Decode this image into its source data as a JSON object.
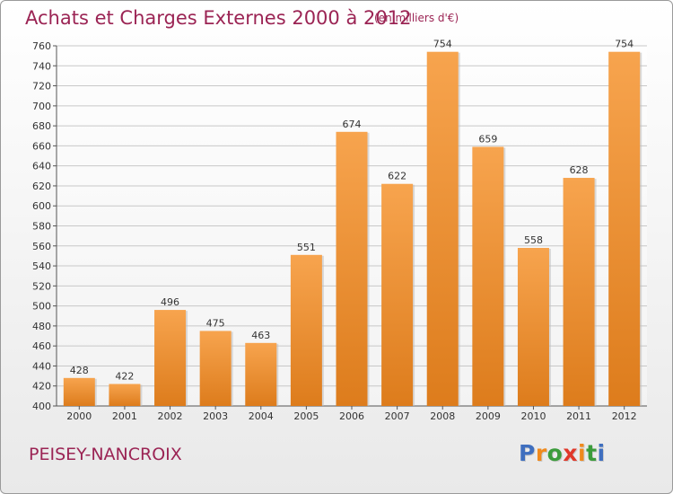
{
  "chart": {
    "title": "Achats et Charges Externes 2000 à 2012",
    "unit_note": "(en milliers d'€)",
    "location": "PEISEY-NANCROIX"
  },
  "logo": {
    "letters": [
      "P",
      "r",
      "o",
      "x",
      "i",
      "t",
      "i"
    ],
    "colors": [
      "#3f6fbf",
      "#f08a1c",
      "#3b9c3b",
      "#e0382a",
      "#f08a1c",
      "#3b9c3b",
      "#3f6fbf"
    ]
  },
  "colors": {
    "bar_light": "#f7a44e",
    "bar_dark": "#dd7c1c",
    "title": "#9b2454",
    "grid": "#c8c8c8"
  },
  "chart_data": {
    "type": "bar",
    "title": "Achats et Charges Externes 2000 à 2012",
    "subtitle": "(en milliers d'€)",
    "categories": [
      "2000",
      "2001",
      "2002",
      "2003",
      "2004",
      "2005",
      "2006",
      "2007",
      "2008",
      "2009",
      "2010",
      "2011",
      "2012"
    ],
    "values": [
      428,
      422,
      496,
      475,
      463,
      551,
      674,
      622,
      754,
      659,
      558,
      628,
      754
    ],
    "ylim": [
      400,
      760
    ],
    "yticks": [
      400,
      420,
      440,
      460,
      480,
      500,
      520,
      540,
      560,
      580,
      600,
      620,
      640,
      660,
      680,
      700,
      720,
      740,
      760
    ],
    "grid": true,
    "legend": "none"
  }
}
